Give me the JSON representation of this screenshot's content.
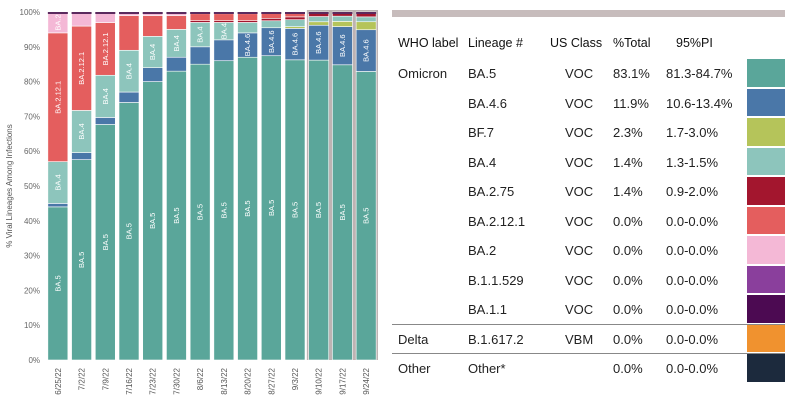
{
  "chart_data": {
    "type": "stacked-bar",
    "ylabel": "% Viral Lineages Among Infections",
    "yticks": [
      "0%",
      "10%",
      "20%",
      "30%",
      "40%",
      "50%",
      "60%",
      "70%",
      "80%",
      "90%",
      "100%"
    ],
    "categories": [
      "6/25/22",
      "7/2/22",
      "7/9/22",
      "7/16/22",
      "7/23/22",
      "7/30/22",
      "8/6/22",
      "8/13/22",
      "8/20/22",
      "8/27/22",
      "9/3/22",
      "9/10/22",
      "9/17/22",
      "9/24/22"
    ],
    "nowcast_from_index": 11,
    "series": [
      {
        "name": "BA.5",
        "color": "#5aa69a",
        "values": [
          44,
          57,
          67,
          74,
          80,
          83,
          85,
          86,
          87,
          87,
          86,
          86,
          85,
          83
        ],
        "labels": [
          "BA.5",
          "BA.5",
          "BA.5",
          "BA.5",
          "BA.5",
          "BA.5",
          "BA.5",
          "BA.5",
          "BA.5",
          "BA.5",
          "BA.5",
          "BA.5",
          "BA.5",
          "BA.5"
        ]
      },
      {
        "name": "BA.4.6",
        "color": "#4a77a8",
        "values": [
          1,
          2,
          2,
          3,
          4,
          4,
          5,
          6,
          7,
          8,
          9,
          10,
          11,
          12
        ],
        "labels": [
          "",
          "",
          "",
          "",
          "",
          "",
          "",
          "",
          "BA.4.6",
          "BA.4.6",
          "BA.4.6",
          "BA.4.6",
          "BA.4.6",
          "BA.4.6"
        ]
      },
      {
        "name": "BF.7",
        "color": "#b5c45a",
        "values": [
          0,
          0,
          0,
          0,
          0,
          0,
          0,
          0,
          0,
          0,
          0.5,
          1,
          1.5,
          2.3
        ],
        "labels": [
          "",
          "",
          "",
          "",
          "",
          "",
          "",
          "",
          "",
          "",
          "",
          "",
          "",
          ""
        ]
      },
      {
        "name": "BA.4",
        "color": "#8dc5bc",
        "values": [
          12,
          12,
          12,
          12,
          9,
          8,
          7,
          5,
          3,
          2,
          2,
          1.5,
          1.5,
          1.4
        ],
        "labels": [
          "BA.4",
          "BA.4",
          "BA.4",
          "BA.4",
          "BA.4",
          "BA.4",
          "BA.4",
          "BA.4",
          "",
          "",
          "",
          "",
          "",
          ""
        ]
      },
      {
        "name": "BA.2.75",
        "color": "#a3162e",
        "values": [
          0,
          0,
          0,
          0,
          0,
          0,
          0.5,
          0.5,
          0.5,
          0.7,
          0.8,
          1,
          1.2,
          1.4
        ],
        "labels": [
          "",
          "",
          "",
          "",
          "",
          "",
          "",
          "",
          "",
          "",
          "",
          "",
          "",
          ""
        ]
      },
      {
        "name": "BA.2.12.1",
        "color": "#e45e5e",
        "values": [
          37,
          24,
          15,
          10,
          6,
          4,
          2,
          2,
          2,
          1.5,
          1.2,
          0.3,
          0,
          0
        ],
        "labels": [
          "BA.2.12.1",
          "BA.2.12.1",
          "BA.2.12.1",
          "",
          "",
          "",
          "",
          "",
          "",
          "",
          "",
          "",
          "",
          ""
        ]
      },
      {
        "name": "BA.2",
        "color": "#f4b8d6",
        "values": [
          6,
          4,
          3,
          1,
          1,
          1,
          0.5,
          0.5,
          0.5,
          0.3,
          0.2,
          0,
          0,
          0
        ],
        "labels": [
          "BA.2",
          "",
          "",
          "",
          "",
          "",
          "",
          "",
          "",
          "",
          "",
          "",
          "",
          ""
        ]
      },
      {
        "name": "B.1.1.529",
        "color": "#8a3f9c",
        "values": [
          0,
          0,
          0,
          0,
          0,
          0,
          0,
          0,
          0,
          0,
          0,
          0,
          0,
          0
        ],
        "labels": [
          "",
          "",
          "",
          "",
          "",
          "",
          "",
          "",
          "",
          "",
          "",
          "",
          "",
          ""
        ]
      },
      {
        "name": "BA.1.1",
        "color": "#4c0a52",
        "values": [
          0,
          0,
          0,
          0,
          0,
          0,
          0,
          0,
          0,
          0,
          0,
          0,
          0,
          0
        ],
        "labels": [
          "",
          "",
          "",
          "",
          "",
          "",
          "",
          "",
          "",
          "",
          "",
          "",
          "",
          ""
        ]
      }
    ]
  },
  "legend": {
    "headers": {
      "who": "WHO label",
      "lineage": "Lineage #",
      "class": "US Class",
      "total": "%Total",
      "pi": "95%PI"
    },
    "rows": [
      {
        "who": "Omicron",
        "lineage": "BA.5",
        "class": "VOC",
        "total": "83.1%",
        "pi": "81.3-84.7%",
        "color": "#5aa69a"
      },
      {
        "who": "",
        "lineage": "BA.4.6",
        "class": "VOC",
        "total": "11.9%",
        "pi": "10.6-13.4%",
        "color": "#4a77a8"
      },
      {
        "who": "",
        "lineage": "BF.7",
        "class": "VOC",
        "total": "2.3%",
        "pi": "1.7-3.0%",
        "color": "#b5c45a"
      },
      {
        "who": "",
        "lineage": "BA.4",
        "class": "VOC",
        "total": "1.4%",
        "pi": "1.3-1.5%",
        "color": "#8dc5bc"
      },
      {
        "who": "",
        "lineage": "BA.2.75",
        "class": "VOC",
        "total": "1.4%",
        "pi": "0.9-2.0%",
        "color": "#a3162e"
      },
      {
        "who": "",
        "lineage": "BA.2.12.1",
        "class": "VOC",
        "total": "0.0%",
        "pi": "0.0-0.0%",
        "color": "#e45e5e"
      },
      {
        "who": "",
        "lineage": "BA.2",
        "class": "VOC",
        "total": "0.0%",
        "pi": "0.0-0.0%",
        "color": "#f4b8d6"
      },
      {
        "who": "",
        "lineage": "B.1.1.529",
        "class": "VOC",
        "total": "0.0%",
        "pi": "0.0-0.0%",
        "color": "#8a3f9c"
      },
      {
        "who": "",
        "lineage": "BA.1.1",
        "class": "VOC",
        "total": "0.0%",
        "pi": "0.0-0.0%",
        "color": "#4c0a52"
      },
      {
        "who": "Delta",
        "lineage": "B.1.617.2",
        "class": "VBM",
        "total": "0.0%",
        "pi": "0.0-0.0%",
        "color": "#f0922f"
      },
      {
        "who": "Other",
        "lineage": "Other*",
        "class": "",
        "total": "0.0%",
        "pi": "0.0-0.0%",
        "color": "#1c2a3d"
      }
    ]
  }
}
